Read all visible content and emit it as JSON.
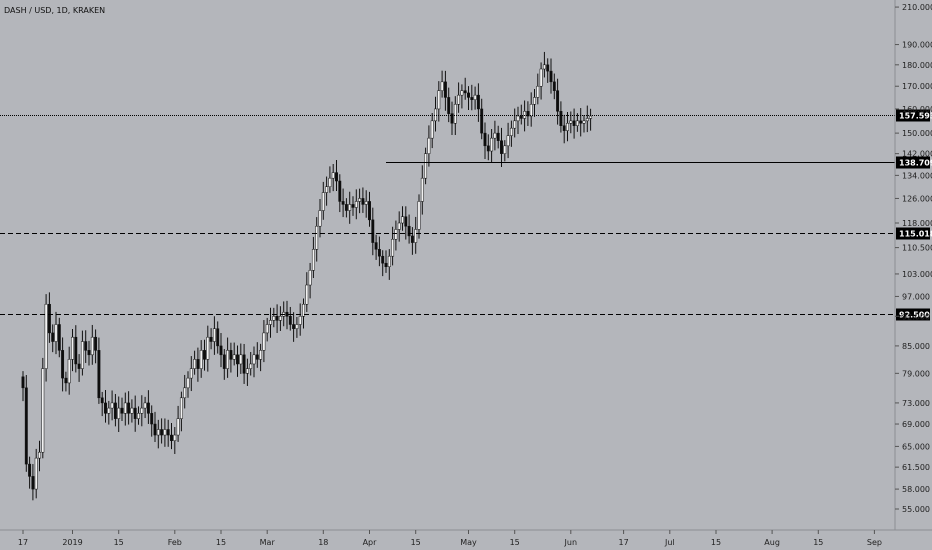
{
  "title": "DASH / USD, 1D, KRAKEN",
  "colors": {
    "background": "#b4b6bb",
    "candle_up": "#f2f2f2",
    "candle_down": "#0d0d0d",
    "wick": "#111111",
    "line": "#000000",
    "badge_bg": "#000000",
    "badge_text": "#ffffff"
  },
  "chart_data": {
    "type": "candlestick",
    "title": "DASH / USD, 1D, KRAKEN",
    "y_scale": "log",
    "ylim": [
      52,
      214
    ],
    "y_ticks": [
      55.0,
      58.0,
      61.5,
      65.0,
      69.0,
      73.0,
      79.0,
      85.0,
      92.0,
      97.0,
      103.0,
      110.5,
      118.0,
      126.0,
      134.0,
      142.0,
      150.0,
      160.0,
      170.0,
      180.0,
      190.0,
      210.0
    ],
    "y_tick_labels": [
      "55.000",
      "58.000",
      "61.500",
      "65.000",
      "69.000",
      "73.000",
      "79.000",
      "85.000",
      "92.000",
      "97.000",
      "103.000",
      "110.500",
      "118.000",
      "126.000",
      "134.000",
      "142.000",
      "150.000",
      "160.000",
      "170.000",
      "180.000",
      "190.000",
      "210.000"
    ],
    "x_tick_labels": [
      {
        "label": "17",
        "day": 0
      },
      {
        "label": "2019",
        "day": 15
      },
      {
        "label": "15",
        "day": 29
      },
      {
        "label": "Feb",
        "day": 46
      },
      {
        "label": "15",
        "day": 60
      },
      {
        "label": "Mar",
        "day": 74
      },
      {
        "label": "18",
        "day": 91
      },
      {
        "label": "Apr",
        "day": 105
      },
      {
        "label": "15",
        "day": 119
      },
      {
        "label": "May",
        "day": 135
      },
      {
        "label": "15",
        "day": 149
      },
      {
        "label": "Jun",
        "day": 166
      },
      {
        "label": "17",
        "day": 182
      },
      {
        "label": "Jul",
        "day": 196
      },
      {
        "label": "15",
        "day": 210
      },
      {
        "label": "Aug",
        "day": 227
      },
      {
        "label": "15",
        "day": 241
      },
      {
        "label": "Sep",
        "day": 258
      }
    ],
    "horizontal_lines": [
      {
        "price": 157.593,
        "label": "157.593",
        "style": "dotted"
      },
      {
        "price": 138.709,
        "label": "138.709",
        "style": "solid",
        "start_day": 110
      },
      {
        "price": 115.018,
        "label": "115.018",
        "style": "dashed"
      },
      {
        "price": 92.5,
        "label": "92.500",
        "style": "dashed"
      }
    ],
    "closes": [
      76,
      62,
      60,
      58,
      63,
      64,
      80,
      95,
      88,
      86,
      90,
      84,
      78,
      77,
      82,
      87,
      81,
      80,
      86,
      84,
      83,
      87,
      84,
      74,
      73,
      71,
      72,
      73,
      70,
      72,
      71,
      73,
      71,
      72,
      70,
      71,
      72,
      73,
      71,
      69,
      67,
      68,
      67,
      68,
      67,
      66,
      67,
      70,
      74,
      76,
      78,
      80,
      82,
      80,
      84,
      82,
      87,
      86,
      89,
      85,
      83,
      80,
      84,
      82,
      83,
      81,
      83,
      79,
      80,
      81,
      83,
      82,
      84,
      88,
      90,
      91,
      92,
      91,
      92,
      93,
      92,
      90,
      89,
      90,
      92,
      95,
      100,
      104,
      110,
      117,
      122,
      128,
      130,
      133,
      135,
      132,
      125,
      124,
      122,
      124,
      123,
      125,
      126,
      124,
      125,
      119,
      112,
      110,
      108,
      106,
      105,
      108,
      113,
      116,
      118,
      120,
      117,
      114,
      112,
      116,
      125,
      133,
      142,
      148,
      155,
      160,
      168,
      172,
      165,
      158,
      154,
      162,
      166,
      168,
      167,
      165,
      164,
      166,
      160,
      150,
      145,
      143,
      148,
      150,
      147,
      142,
      145,
      149,
      152,
      155,
      157,
      156,
      159,
      157,
      162,
      165,
      170,
      178,
      180,
      177,
      172,
      168,
      159,
      153,
      151,
      154,
      155,
      153,
      155,
      154,
      155,
      156,
      157
    ]
  }
}
